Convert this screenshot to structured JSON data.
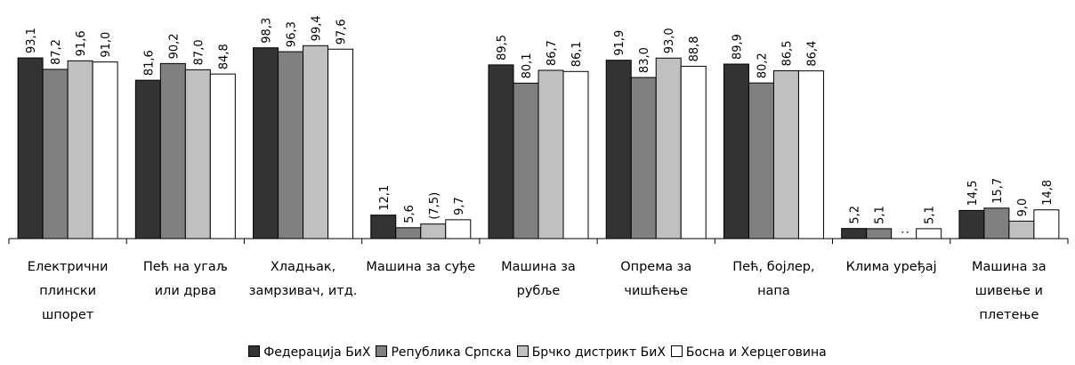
{
  "chart_data": {
    "type": "bar",
    "categories": [
      "Електрични плински шпорет",
      "Пећ на угаљ или дрва",
      "Хладњак, замрзивач, итд.",
      "Машина за суђе",
      "Машина за рубље",
      "Опрема за чишћење",
      "Пећ, бојлер, напа",
      "Клима уређај",
      "Машина за шивење и плетење"
    ],
    "ylim": [
      0,
      100
    ],
    "series": [
      {
        "name": "Федерација БиХ",
        "color": "#333333",
        "values": [
          93.1,
          81.6,
          98.3,
          12.1,
          89.5,
          91.9,
          89.9,
          5.2,
          14.5
        ],
        "value_labels": [
          "93,1",
          "81,6",
          "98,3",
          "12,1",
          "89,5",
          "91,9",
          "89,9",
          "5,2",
          "14,5"
        ]
      },
      {
        "name": "Република Српска",
        "color": "#808080",
        "values": [
          87.2,
          90.2,
          96.3,
          5.6,
          80.1,
          83.0,
          80.2,
          5.1,
          15.7
        ],
        "value_labels": [
          "87,2",
          "90,2",
          "96,3",
          "5,6",
          "80,1",
          "83,0",
          "80,2",
          "5,1",
          "15,7"
        ]
      },
      {
        "name": "Брчко дистрикт БиХ",
        "color": "#c0c0c0",
        "values": [
          91.6,
          87.0,
          99.4,
          7.5,
          86.7,
          93.0,
          86.5,
          null,
          9.0
        ],
        "value_labels": [
          "91,6",
          "87,0",
          "99,4",
          "(7,5)",
          "86,7",
          "93,0",
          "86,5",
          ":",
          "9,0"
        ]
      },
      {
        "name": "Босна и Херцеговина",
        "color": "#ffffff",
        "values": [
          91.0,
          84.8,
          97.6,
          9.7,
          86.1,
          88.8,
          86.4,
          5.1,
          14.8
        ],
        "value_labels": [
          "91,0",
          "84,8",
          "97,6",
          "9,7",
          "86,1",
          "88,8",
          "86,4",
          "5,1",
          "14,8"
        ]
      }
    ]
  }
}
